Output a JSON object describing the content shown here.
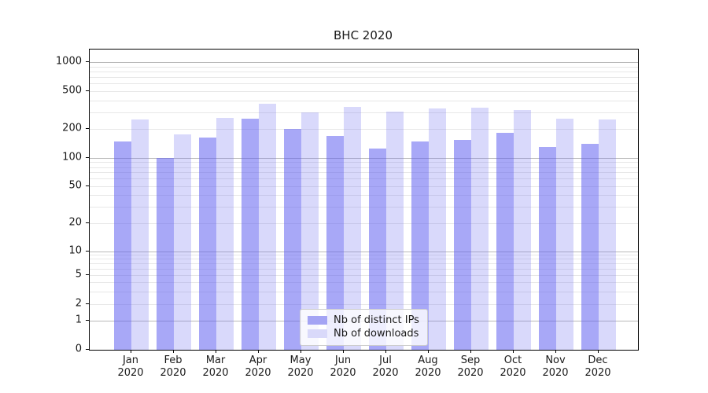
{
  "chart_data": {
    "type": "bar",
    "title": "BHC 2020",
    "yscale": "symlog",
    "grid": "both",
    "legend_position": "lower-center",
    "categories": [
      "Jan",
      "Feb",
      "Mar",
      "Apr",
      "May",
      "Jun",
      "Jul",
      "Aug",
      "Sep",
      "Oct",
      "Nov",
      "Dec"
    ],
    "category_year": "2020",
    "series": [
      {
        "name": "Nb of distinct IPs",
        "bar_fill": "rgba(97,97,240,0.55)",
        "swatch_color": "#a4a4f4",
        "values": [
          150,
          100,
          165,
          260,
          200,
          170,
          125,
          150,
          155,
          185,
          130,
          140
        ]
      },
      {
        "name": "Nb of downloads",
        "bar_fill": "rgba(120,120,240,0.28)",
        "swatch_color": "#d9d9fa",
        "values": [
          255,
          175,
          265,
          370,
          300,
          345,
          305,
          330,
          335,
          320,
          260,
          255
        ]
      }
    ],
    "ytick_values": [
      0,
      1,
      2,
      5,
      10,
      20,
      50,
      100,
      200,
      500,
      1000
    ],
    "ytick_labels": [
      "0",
      "1",
      "2",
      "5",
      "10",
      "20",
      "50",
      "100",
      "200",
      "500",
      "1000"
    ],
    "ylim": [
      0,
      1350
    ]
  }
}
